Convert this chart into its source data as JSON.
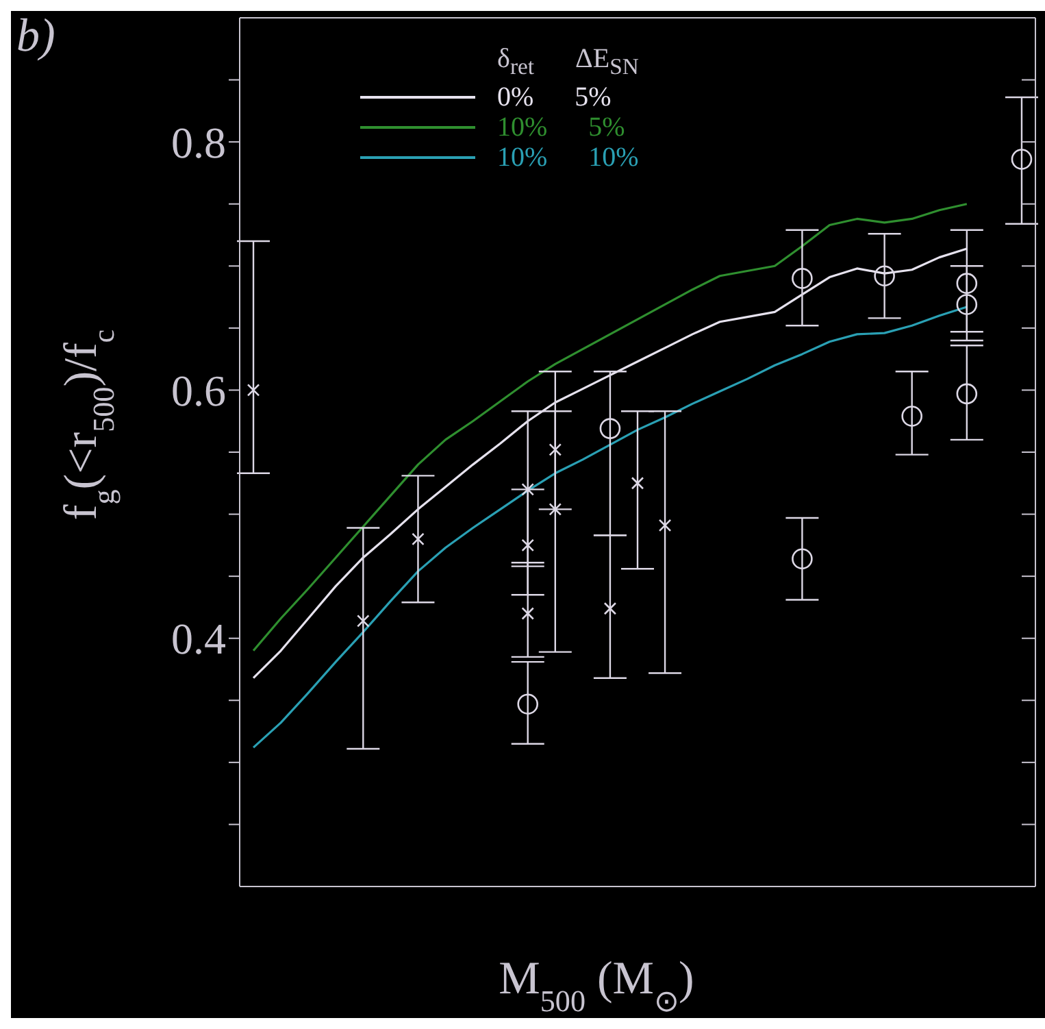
{
  "chart_data": {
    "type": "scatter",
    "xlabel": "M$_{500}$ (M$_{⊙}$)",
    "ylabel": "f$_{g}$(<r$_{500}$)/f$_{c}$",
    "legend_title": "δ$_{ret}$      ΔE$_{SN}$",
    "annotations": [
      "b)"
    ],
    "categories": [
      null,
      null,
      null,
      null,
      null,
      null,
      null,
      null,
      null,
      null,
      null,
      null,
      null,
      null,
      null,
      null,
      null,
      null,
      null,
      null,
      null,
      null,
      null,
      null,
      null,
      null,
      null,
      null,
      null
    ],
    "ylim": [
      0.2,
      0.9
    ],
    "yticks": [
      {
        "value": 0.25,
        "label": null
      },
      {
        "value": 0.3,
        "label": null
      },
      {
        "value": 0.35,
        "label": null
      },
      0.4,
      {
        "value": 0.45,
        "label": null
      },
      {
        "value": 0.5,
        "label": null
      },
      {
        "value": 0.55,
        "label": null
      },
      0.6,
      {
        "value": 0.65,
        "label": null
      },
      {
        "value": 0.7,
        "label": null
      },
      {
        "value": 0.75,
        "label": null
      },
      0.8,
      {
        "value": 0.85,
        "label": null
      }
    ],
    "tick_labels": "y",
    "legend": "top left",
    "series": [
      {
        "type": "line",
        "name": "0%      5%",
        "color": "#e6e2ee",
        "line_style": "solid",
        "values": [
          0.368,
          0.39,
          0.416,
          0.442,
          0.465,
          0.484,
          0.504,
          0.522,
          0.54,
          0.557,
          0.575,
          0.59,
          0.601,
          0.612,
          0.623,
          0.634,
          0.645,
          0.655,
          0.659,
          0.663,
          0.677,
          0.691,
          0.698,
          0.694,
          0.697,
          0.707,
          0.714,
          null,
          null
        ]
      },
      {
        "type": "line",
        "name": "10%      5%",
        "color": "#2f8f2f",
        "line_style": "solid",
        "values": [
          0.39,
          0.416,
          0.44,
          0.465,
          0.49,
          0.515,
          0.54,
          0.56,
          0.575,
          0.591,
          0.607,
          0.621,
          0.633,
          0.645,
          0.657,
          0.669,
          0.681,
          0.692,
          0.696,
          0.7,
          0.716,
          0.733,
          0.738,
          0.735,
          0.738,
          0.745,
          0.75,
          null,
          null
        ]
      },
      {
        "type": "line",
        "name": "10%      10%",
        "color": "#2aa0b4",
        "line_style": "solid",
        "values": [
          0.312,
          0.332,
          0.356,
          0.381,
          0.405,
          0.43,
          0.454,
          0.473,
          0.489,
          0.504,
          0.519,
          0.533,
          0.544,
          0.556,
          0.568,
          0.578,
          0.589,
          0.599,
          0.609,
          0.62,
          0.629,
          0.639,
          0.645,
          0.646,
          0.652,
          0.66,
          0.667,
          null,
          null
        ]
      },
      {
        "type": "scatter",
        "color": "#ddd8e6",
        "marker": "cross",
        "values": [
          0.6,
          null,
          null,
          null,
          0.414,
          null,
          0.48,
          null,
          null,
          null,
          0.52,
          0.552,
          null,
          0.424,
          0.525,
          0.491,
          null,
          null,
          null,
          null,
          null,
          null,
          null,
          null,
          null,
          null,
          null,
          null,
          null
        ],
        "errors": [
          [
            0.533,
            0.72
          ],
          null,
          null,
          null,
          [
            0.311,
            0.489
          ],
          null,
          [
            0.429,
            0.531
          ],
          null,
          null,
          null,
          [
            0.458,
            0.583
          ],
          [
            0.504,
            0.615
          ],
          null,
          [
            0.368,
            0.483
          ],
          [
            0.456,
            0.583
          ],
          [
            0.372,
            0.583
          ],
          null,
          null,
          null,
          null,
          null,
          null,
          null,
          null,
          null,
          null,
          null,
          null,
          null
        ]
      },
      {
        "type": "scatter",
        "color": "#ddd8e6",
        "marker": "cross",
        "values": [
          null,
          null,
          null,
          null,
          null,
          null,
          null,
          null,
          null,
          null,
          0.475,
          0.504,
          null,
          null,
          null,
          null,
          null,
          null,
          null,
          null,
          null,
          null,
          null,
          null,
          null,
          null,
          null,
          null,
          null
        ],
        "errors": [
          null,
          null,
          null,
          null,
          null,
          null,
          null,
          null,
          null,
          null,
          [
            0.435,
            0.52
          ],
          [
            0.389,
            0.583
          ],
          null,
          null,
          null,
          null,
          null,
          null,
          null,
          null,
          null,
          null,
          null,
          null,
          null,
          null,
          null,
          null,
          null
        ]
      },
      {
        "type": "scatter",
        "color": "#ddd8e6",
        "marker": "cross",
        "values": [
          null,
          null,
          null,
          null,
          null,
          null,
          null,
          null,
          null,
          null,
          0.42,
          null,
          null,
          null,
          null,
          null,
          null,
          null,
          null,
          null,
          null,
          null,
          null,
          null,
          null,
          null,
          null,
          null,
          null
        ],
        "errors": [
          null,
          null,
          null,
          null,
          null,
          null,
          null,
          null,
          null,
          null,
          [
            0.385,
            0.461
          ],
          null,
          null,
          null,
          null,
          null,
          null,
          null,
          null,
          null,
          null,
          null,
          null,
          null,
          null,
          null,
          null,
          null,
          null
        ]
      },
      {
        "type": "scatter",
        "color": "#ddd8e6",
        "marker": "circle",
        "values": [
          null,
          null,
          null,
          null,
          null,
          null,
          null,
          null,
          null,
          null,
          0.347,
          null,
          null,
          0.569,
          null,
          null,
          null,
          null,
          null,
          null,
          0.464,
          null,
          null,
          0.692,
          0.579,
          null,
          0.597,
          null,
          0.786
        ],
        "errors": [
          null,
          null,
          null,
          null,
          null,
          null,
          null,
          null,
          null,
          null,
          [
            0.315,
            0.381
          ],
          null,
          null,
          [
            0.483,
            0.615
          ],
          null,
          null,
          null,
          null,
          null,
          null,
          [
            0.431,
            0.497
          ],
          null,
          null,
          [
            0.658,
            0.726
          ],
          [
            0.548,
            0.615
          ],
          null,
          [
            0.56,
            0.636
          ],
          null,
          [
            0.734,
            0.836
          ]
        ]
      },
      {
        "type": "scatter",
        "color": "#ddd8e6",
        "marker": "circle",
        "values": [
          null,
          null,
          null,
          null,
          null,
          null,
          null,
          null,
          null,
          null,
          null,
          null,
          null,
          null,
          null,
          null,
          null,
          null,
          null,
          null,
          0.69,
          null,
          null,
          null,
          null,
          null,
          0.686,
          null,
          null
        ],
        "errors": [
          null,
          null,
          null,
          null,
          null,
          null,
          null,
          null,
          null,
          null,
          null,
          null,
          null,
          null,
          null,
          null,
          null,
          null,
          null,
          null,
          [
            0.652,
            0.729
          ],
          null,
          null,
          null,
          null,
          null,
          [
            0.647,
            0.729
          ],
          null,
          null
        ]
      },
      {
        "type": "scatter",
        "color": "#ddd8e6",
        "marker": "circle",
        "values": [
          null,
          null,
          null,
          null,
          null,
          null,
          null,
          null,
          null,
          null,
          null,
          null,
          null,
          null,
          null,
          null,
          null,
          null,
          null,
          null,
          null,
          null,
          null,
          null,
          null,
          null,
          0.669,
          null,
          null
        ],
        "errors": [
          null,
          null,
          null,
          null,
          null,
          null,
          null,
          null,
          null,
          null,
          null,
          null,
          null,
          null,
          null,
          null,
          null,
          null,
          null,
          null,
          null,
          null,
          null,
          null,
          null,
          null,
          [
            0.64,
            0.7
          ],
          null,
          null
        ]
      }
    ]
  }
}
